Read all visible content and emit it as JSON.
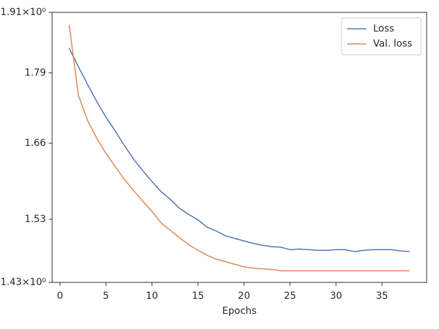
{
  "chart_data": {
    "type": "line",
    "x_label": "Epochs",
    "x": [
      1,
      2,
      3,
      4,
      5,
      6,
      7,
      8,
      9,
      10,
      11,
      12,
      13,
      14,
      15,
      16,
      17,
      18,
      19,
      20,
      21,
      22,
      23,
      24,
      25,
      26,
      27,
      28,
      29,
      30,
      31,
      32,
      33,
      34,
      35,
      36,
      37,
      38
    ],
    "series": [
      {
        "name": "Loss",
        "color": "#4c72b0",
        "values": [
          1.838,
          1.802,
          1.768,
          1.736,
          1.707,
          1.682,
          1.656,
          1.632,
          1.612,
          1.593,
          1.576,
          1.563,
          1.548,
          1.538,
          1.529,
          1.517,
          1.511,
          1.503,
          1.499,
          1.495,
          1.491,
          1.488,
          1.486,
          1.485,
          1.481,
          1.482,
          1.481,
          1.48,
          1.48,
          1.481,
          1.481,
          1.478,
          1.48,
          1.481,
          1.481,
          1.481,
          1.479,
          1.478
        ]
      },
      {
        "name": "Val. loss",
        "color": "#dd8452",
        "values": [
          1.885,
          1.748,
          1.701,
          1.669,
          1.642,
          1.619,
          1.597,
          1.578,
          1.56,
          1.543,
          1.524,
          1.512,
          1.5,
          1.489,
          1.48,
          1.472,
          1.466,
          1.462,
          1.458,
          1.454,
          1.452,
          1.451,
          1.45,
          1.448,
          1.448,
          1.448,
          1.448,
          1.448,
          1.448,
          1.448,
          1.448,
          1.448,
          1.448,
          1.448,
          1.448,
          1.448,
          1.448,
          1.448
        ]
      }
    ],
    "xlim": [
      -0.85,
      39.85
    ],
    "xticks": [
      0,
      5,
      10,
      15,
      20,
      25,
      30,
      35
    ],
    "ylim": [
      1.43,
      1.91
    ],
    "yticks": [
      {
        "value": 1.43,
        "label": "1.43×10⁰"
      },
      1.53,
      1.66,
      1.79,
      {
        "value": 1.91,
        "label": "1.91×10⁰"
      }
    ],
    "y_log": true,
    "grid": false,
    "legend": "upper right"
  }
}
